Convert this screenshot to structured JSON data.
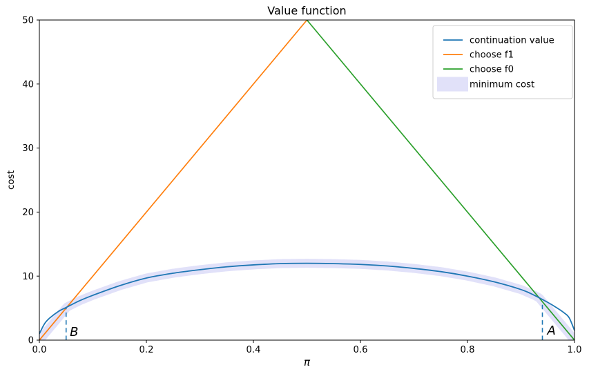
{
  "chart_data": {
    "type": "line",
    "title": "Value function",
    "xlabel": "π",
    "ylabel": "cost",
    "xlim": [
      0.0,
      1.0
    ],
    "ylim": [
      0,
      50
    ],
    "xticks": [
      0.0,
      0.2,
      0.4,
      0.6,
      0.8,
      1.0
    ],
    "xtick_labels": [
      "0.0",
      "0.2",
      "0.4",
      "0.6",
      "0.8",
      "1.0"
    ],
    "yticks": [
      0,
      10,
      20,
      30,
      40,
      50
    ],
    "ytick_labels": [
      "0",
      "10",
      "20",
      "30",
      "40",
      "50"
    ],
    "grid": false,
    "legend": {
      "position": "upper right",
      "entries": [
        "continuation value",
        "choose f1",
        "choose f0",
        "minimum cost"
      ]
    },
    "series": [
      {
        "name": "continuation value",
        "type": "line",
        "color": "#1f77b4",
        "x": [
          0,
          0.01,
          0.02,
          0.035,
          0.05,
          0.075,
          0.1,
          0.15,
          0.2,
          0.25,
          0.3,
          0.35,
          0.4,
          0.45,
          0.5,
          0.55,
          0.6,
          0.65,
          0.7,
          0.75,
          0.8,
          0.85,
          0.9,
          0.925,
          0.95,
          0.965,
          0.98,
          0.99,
          1.0
        ],
        "y": [
          1.0,
          2.6,
          3.5,
          4.45,
          5.1,
          6.15,
          7.0,
          8.5,
          9.7,
          10.45,
          11.0,
          11.45,
          11.75,
          11.95,
          12.0,
          11.95,
          11.83,
          11.58,
          11.2,
          10.7,
          10.0,
          9.1,
          7.9,
          7.0,
          5.9,
          5.15,
          4.3,
          3.5,
          1.5
        ]
      },
      {
        "name": "choose f1",
        "type": "line",
        "color": "#ff7f0e",
        "x": [
          0.0,
          0.5
        ],
        "y": [
          0,
          50
        ]
      },
      {
        "name": "choose f0",
        "type": "line",
        "color": "#2ca02c",
        "x": [
          0.5,
          1.0
        ],
        "y": [
          50,
          0
        ]
      },
      {
        "name": "minimum cost",
        "type": "band",
        "color": "#e1e1f9",
        "derived": "pointwise minimum of continuation value, choose f1 and choose f0",
        "stroke_width_px": 13
      }
    ],
    "annotations": [
      {
        "label": "B",
        "x": 0.05,
        "vline_from": 0,
        "vline_to": 5.05,
        "style": "dashed",
        "color": "#1f77b4",
        "label_pos": [
          0.057,
          0.62
        ]
      },
      {
        "label": "A",
        "x": 0.94,
        "vline_from": 0,
        "vline_to": 6.0,
        "style": "dashed",
        "color": "#1f77b4",
        "label_pos": [
          0.949,
          0.85
        ]
      }
    ],
    "colors": {
      "spine": "#000000",
      "background": "#ffffff",
      "legend_border": "#cccccc"
    }
  }
}
